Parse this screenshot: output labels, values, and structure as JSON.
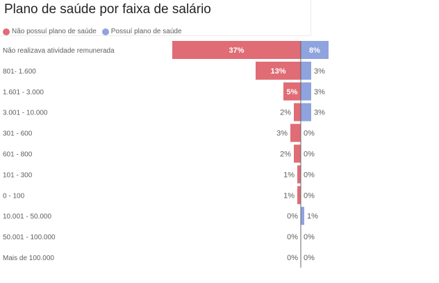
{
  "chart_data": {
    "type": "bar",
    "title": "Plano de saúde por faixa de salário",
    "categories": [
      "Não realizava atividade remunerada",
      "801- 1.600",
      "1.601 - 3.000",
      "3.001 - 10.000",
      "301 - 600",
      "601 - 800",
      "101 - 300",
      "0 - 100",
      "10.001 - 50.000",
      "50.001 - 100.000",
      "Mais de 100.000"
    ],
    "series": [
      {
        "name": "Não possuí plano de saúde",
        "color": "#e06c75",
        "values": [
          37,
          13,
          5,
          2,
          3,
          2,
          1,
          1,
          0,
          0,
          0
        ],
        "labels": [
          "37%",
          "13%",
          "5%",
          "2%",
          "3%",
          "2%",
          "1%",
          "1%",
          "0%",
          "0%",
          "0%"
        ]
      },
      {
        "name": "Possuí plano de saúde",
        "color": "#8fa3de",
        "values": [
          8,
          3,
          3,
          3,
          0,
          0,
          0,
          0,
          1,
          0,
          0
        ],
        "labels": [
          "8%",
          "3%",
          "3%",
          "3%",
          "0%",
          "0%",
          "0%",
          "0%",
          "1%",
          "0%",
          "0%"
        ]
      }
    ],
    "legend_position": "top-left",
    "grid": false
  }
}
